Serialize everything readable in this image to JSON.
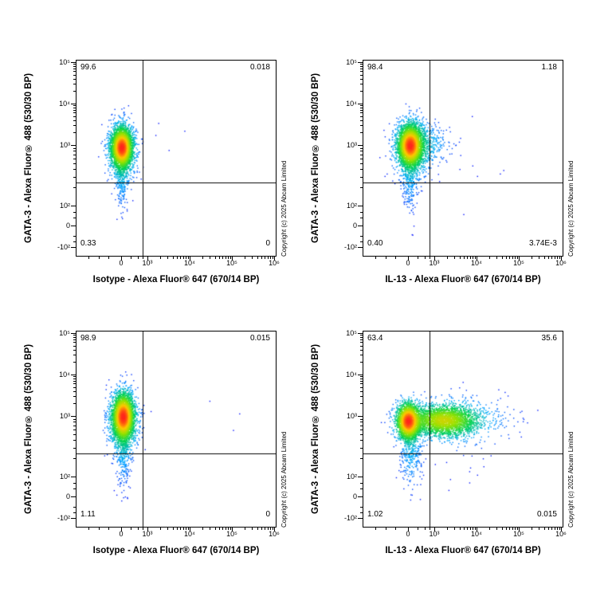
{
  "figure": {
    "background": "#ffffff",
    "copyright": "Copyright (c) 2025 Abcam Limited",
    "accent_colors": {
      "density_low": "#0a0aff",
      "density_mid": "#00d250",
      "density_high": "#ff281e",
      "axis": "#000000"
    },
    "axes": {
      "x_scale": "biexponential (log)",
      "y_scale": "biexponential (log)",
      "x_range_label": "0 to 10⁶",
      "y_range_label": "-10² to 10⁵",
      "x_major_ticks": [
        {
          "label": "0",
          "f": 0.228
        },
        {
          "label": "10³",
          "f": 0.36
        },
        {
          "label": "10⁴",
          "f": 0.572
        },
        {
          "label": "10⁵",
          "f": 0.784
        },
        {
          "label": "10⁶",
          "f": 0.996
        }
      ],
      "y_major_ticks": [
        {
          "label": "10⁵",
          "f": 0.012
        },
        {
          "label": "10⁴",
          "f": 0.224
        },
        {
          "label": "10³",
          "f": 0.437
        },
        {
          "label": "10²",
          "f": 0.747
        },
        {
          "label": "0",
          "f": 0.85
        },
        {
          "label": "-10²",
          "f": 0.96
        }
      ],
      "x_minor_near_zero_f": [
        0.065,
        0.115,
        0.165,
        0.275,
        0.31,
        0.335
      ],
      "y_minor_near_zero_f": [
        0.78,
        0.81,
        0.9,
        0.93
      ],
      "x_log_decades": [
        [
          0.36,
          0.572
        ],
        [
          0.572,
          0.784
        ],
        [
          0.784,
          0.996
        ]
      ],
      "y_log_decades": [
        [
          0.747,
          0.437
        ],
        [
          0.437,
          0.224
        ],
        [
          0.224,
          0.012
        ]
      ]
    }
  },
  "chart_data": [
    {
      "type": "scatter",
      "subtype": "flow-cytometry-pseudocolor-density",
      "xlabel": "Isotype - Alexa Fluor® 647 (670/14 BP)",
      "ylabel": "GATA-3 - Alexa Fluor® 488 (530/30 BP)",
      "legend": "none",
      "grid": "off",
      "quadrant_stats": {
        "upper_left": "99.6",
        "upper_right": "0.018",
        "lower_left": "0.33",
        "lower_right": "0"
      },
      "gate": {
        "x_f": 0.33,
        "y_f": 0.625
      },
      "seed": 11,
      "clusters": [
        {
          "cx": 0.228,
          "cy": 0.445,
          "sx": 0.026,
          "sy": 0.05,
          "n": 3000,
          "w": 1
        },
        {
          "cx": 0.228,
          "cy": 0.465,
          "sx": 0.036,
          "sy": 0.075,
          "n": 900,
          "w": 0.18
        },
        {
          "cx": 0.228,
          "cy": 0.6,
          "sx": 0.017,
          "sy": 0.085,
          "n": 260,
          "w": 0.03
        },
        {
          "cx": 0.6,
          "cy": 0.4,
          "sx": 0.18,
          "sy": 0.1,
          "n": 5,
          "w": 0.0002
        }
      ]
    },
    {
      "type": "scatter",
      "subtype": "flow-cytometry-pseudocolor-density",
      "xlabel": "IL-13 - Alexa Fluor® 647 (670/14 BP)",
      "ylabel": "GATA-3 - Alexa Fluor® 488 (530/30 BP)",
      "legend": "none",
      "grid": "off",
      "quadrant_stats": {
        "upper_left": "98.4",
        "upper_right": "1.18",
        "lower_left": "0.40",
        "lower_right": "3.74E-3"
      },
      "gate": {
        "x_f": 0.33,
        "y_f": 0.625
      },
      "seed": 22,
      "clusters": [
        {
          "cx": 0.235,
          "cy": 0.435,
          "sx": 0.03,
          "sy": 0.052,
          "n": 3000,
          "w": 1
        },
        {
          "cx": 0.245,
          "cy": 0.45,
          "sx": 0.045,
          "sy": 0.075,
          "n": 900,
          "w": 0.18
        },
        {
          "cx": 0.315,
          "cy": 0.43,
          "sx": 0.06,
          "sy": 0.05,
          "n": 380,
          "w": 0.05
        },
        {
          "cx": 0.235,
          "cy": 0.6,
          "sx": 0.02,
          "sy": 0.085,
          "n": 300,
          "w": 0.03
        },
        {
          "cx": 0.55,
          "cy": 0.45,
          "sx": 0.12,
          "sy": 0.12,
          "n": 7,
          "w": 0.0002
        },
        {
          "cx": 0.55,
          "cy": 0.78,
          "sx": 0.03,
          "sy": 0.03,
          "n": 1,
          "w": 0.0001
        }
      ]
    },
    {
      "type": "scatter",
      "subtype": "flow-cytometry-pseudocolor-density",
      "xlabel": "Isotype - Alexa Fluor® 647 (670/14 BP)",
      "ylabel": "GATA-3 - Alexa Fluor® 488 (530/30 BP)",
      "legend": "none",
      "grid": "off",
      "quadrant_stats": {
        "upper_left": "98.9",
        "upper_right": "0.015",
        "lower_left": "1.11",
        "lower_right": "0"
      },
      "gate": {
        "x_f": 0.33,
        "y_f": 0.625
      },
      "seed": 33,
      "clusters": [
        {
          "cx": 0.235,
          "cy": 0.435,
          "sx": 0.027,
          "sy": 0.058,
          "n": 3000,
          "w": 1
        },
        {
          "cx": 0.235,
          "cy": 0.47,
          "sx": 0.037,
          "sy": 0.082,
          "n": 950,
          "w": 0.18
        },
        {
          "cx": 0.235,
          "cy": 0.62,
          "sx": 0.018,
          "sy": 0.09,
          "n": 300,
          "w": 0.03
        },
        {
          "cx": 0.62,
          "cy": 0.42,
          "sx": 0.15,
          "sy": 0.08,
          "n": 4,
          "w": 0.0002
        }
      ]
    },
    {
      "type": "scatter",
      "subtype": "flow-cytometry-pseudocolor-density",
      "xlabel": "IL-13 - Alexa Fluor® 647 (670/14 BP)",
      "ylabel": "GATA-3 - Alexa Fluor® 488 (530/30 BP)",
      "legend": "none",
      "grid": "off",
      "quadrant_stats": {
        "upper_left": "63.4",
        "upper_right": "35.6",
        "lower_left": "1.02",
        "lower_right": "0.015"
      },
      "gate": {
        "x_f": 0.33,
        "y_f": 0.625
      },
      "seed": 44,
      "clusters": [
        {
          "cx": 0.225,
          "cy": 0.46,
          "sx": 0.03,
          "sy": 0.048,
          "n": 2200,
          "w": 1
        },
        {
          "cx": 0.4,
          "cy": 0.455,
          "sx": 0.085,
          "sy": 0.04,
          "n": 2400,
          "w": 0.5
        },
        {
          "cx": 0.46,
          "cy": 0.46,
          "sx": 0.12,
          "sy": 0.06,
          "n": 550,
          "w": 0.08
        },
        {
          "cx": 0.24,
          "cy": 0.6,
          "sx": 0.028,
          "sy": 0.095,
          "n": 420,
          "w": 0.04
        },
        {
          "cx": 0.5,
          "cy": 0.7,
          "sx": 0.1,
          "sy": 0.06,
          "n": 12,
          "w": 0.0003
        },
        {
          "cx": 0.65,
          "cy": 0.45,
          "sx": 0.1,
          "sy": 0.05,
          "n": 40,
          "w": 0.001
        }
      ]
    }
  ]
}
